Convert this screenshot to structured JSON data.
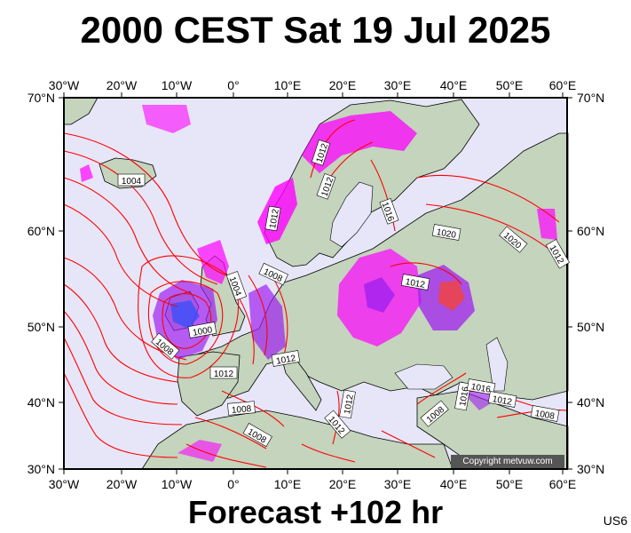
{
  "title": "2000 CEST Sat 19 Jul 2025",
  "footer": "Forecast +102 hr",
  "run_code": "US6",
  "copyright": "Copyright metvuw.com",
  "axes": {
    "lon_labels": [
      "30°W",
      "20°W",
      "10°W",
      "0°",
      "10°E",
      "20°E",
      "30°E",
      "40°E",
      "50°E",
      "60°E"
    ],
    "lat_labels": [
      "70°N",
      "60°N",
      "50°N",
      "40°N",
      "30°N"
    ]
  },
  "isobar_labels": [
    "1012",
    "1004",
    "1012",
    "1016",
    "1020",
    "1020",
    "1012",
    "1004",
    "1008",
    "1012",
    "1000",
    "1008",
    "1012",
    "1012",
    "1012",
    "1008",
    "1008",
    "1016",
    "1016",
    "1012",
    "1008",
    "1012",
    "1012",
    "1008"
  ],
  "colors": {
    "ocean": "#e6e6f8",
    "isobar": "#ff0000",
    "land": "#c4d4bd",
    "precip_magenta": "#ff00ff",
    "precip_purple": "#a020f0",
    "precip_blue": "#3050ff"
  }
}
